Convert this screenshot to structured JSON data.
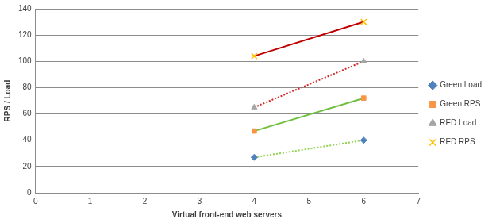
{
  "chart_data": {
    "type": "line",
    "x_label": "Virtual front-end web servers",
    "y_label": "RPS / Load",
    "x": [
      4,
      6
    ],
    "xlim": [
      0,
      7
    ],
    "xticks": [
      0,
      1,
      2,
      3,
      4,
      5,
      6,
      7
    ],
    "ylim": [
      0,
      140
    ],
    "yticks": [
      0,
      20,
      40,
      60,
      80,
      100,
      120,
      140
    ],
    "grid": true,
    "legend": "right",
    "series": [
      {
        "name": "Green Load",
        "color": "#92d050",
        "values": [
          27,
          40
        ],
        "marker": "diamond",
        "line_style": "dotted"
      },
      {
        "name": "Green RPS",
        "color": "#70c040",
        "values": [
          47,
          72
        ],
        "marker": "square",
        "line_style": "solid"
      },
      {
        "name": "RED Load",
        "color": "#d02a2a",
        "values": [
          65,
          100
        ],
        "marker": "triangle",
        "line_style": "dotted"
      },
      {
        "name": "RED RPS",
        "color": "#c00000",
        "values": [
          104,
          130
        ],
        "marker": "x",
        "line_style": "solid"
      }
    ]
  }
}
